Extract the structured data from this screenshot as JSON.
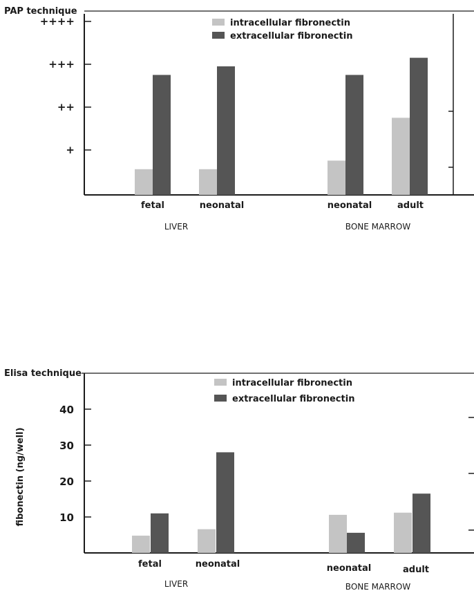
{
  "chart_data": [
    {
      "type": "bar",
      "title": "PAP technique",
      "ylabel": "",
      "y_tick_labels": [
        "+",
        "++",
        "+++",
        "++++"
      ],
      "ylim": [
        0,
        4
      ],
      "categories": [
        "fetal",
        "neonatal",
        "neonatal",
        "adult"
      ],
      "groups": [
        {
          "label": "LIVER",
          "categories": [
            "fetal",
            "neonatal"
          ]
        },
        {
          "label": "BONE MARROW",
          "categories": [
            "neonatal",
            "adult"
          ]
        }
      ],
      "series": [
        {
          "name": "intracellular fibronectin",
          "color": "#c4c4c4",
          "values": [
            0.6,
            0.6,
            0.8,
            1.8
          ]
        },
        {
          "name": "extracellular fibronectin",
          "color": "#555555",
          "values": [
            2.8,
            3.0,
            2.8,
            3.2
          ]
        }
      ],
      "legend": "top-center",
      "grid": false
    },
    {
      "type": "bar",
      "title": "Elisa technique",
      "ylabel": "fibonectin (ng/well)",
      "y_ticks": [
        10,
        20,
        30,
        40
      ],
      "ylim": [
        0,
        45
      ],
      "categories": [
        "fetal",
        "neonatal",
        "neonatal",
        "adult"
      ],
      "groups": [
        {
          "label": "LIVER",
          "categories": [
            "fetal",
            "neonatal"
          ]
        },
        {
          "label": "BONE MARROW",
          "categories": [
            "neonatal",
            "adult"
          ]
        }
      ],
      "series": [
        {
          "name": "intracellular fibronectin",
          "color": "#c4c4c4",
          "values": [
            4.8,
            6.6,
            10.6,
            11.2
          ]
        },
        {
          "name": "extracellular fibronectin",
          "color": "#555555",
          "values": [
            11,
            28,
            5.6,
            16.5
          ]
        }
      ],
      "legend": "top-center",
      "grid": false
    }
  ]
}
